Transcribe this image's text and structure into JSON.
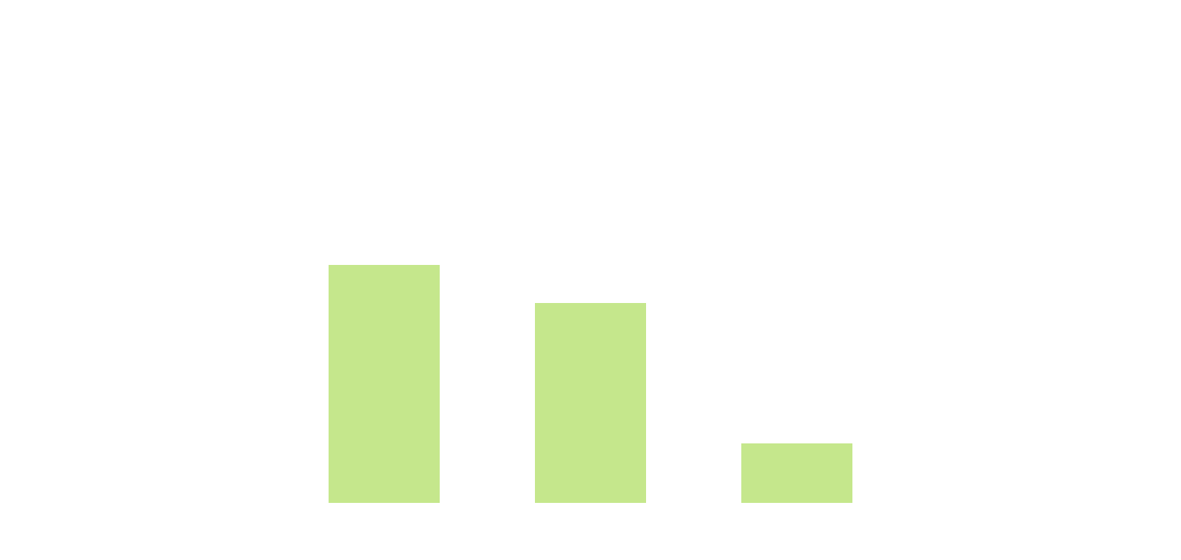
{
  "chart_data": {
    "type": "bar",
    "categories": [
      "",
      "",
      ""
    ],
    "values": [
      100,
      84,
      25
    ],
    "title": "",
    "xlabel": "",
    "ylabel": "",
    "ylim": [
      0,
      200
    ],
    "grid": false,
    "legend": "none",
    "colors": {
      "bar": "#c5e78c",
      "background": "#ffffff"
    }
  }
}
